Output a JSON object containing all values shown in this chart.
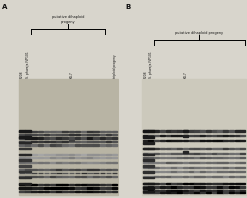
{
  "bg_color": "#d8d5cc",
  "panel_A_label": "A",
  "panel_B_label": "B",
  "bracket_label_A": "putative dihaploid\nprogeny",
  "bracket_label_B": "putative dihaploid progeny",
  "labels_A": [
    "P208",
    "S. phureja IVP101",
    "K4-7",
    "triploid progeny"
  ],
  "labels_B": [
    "P208",
    "S. phureja IVP101",
    "K4-7"
  ],
  "num_lanes_A": 16,
  "num_lanes_B": 18,
  "gel_bg_A": "#b8b4a4",
  "gel_bg_B": "#ccc9bc"
}
